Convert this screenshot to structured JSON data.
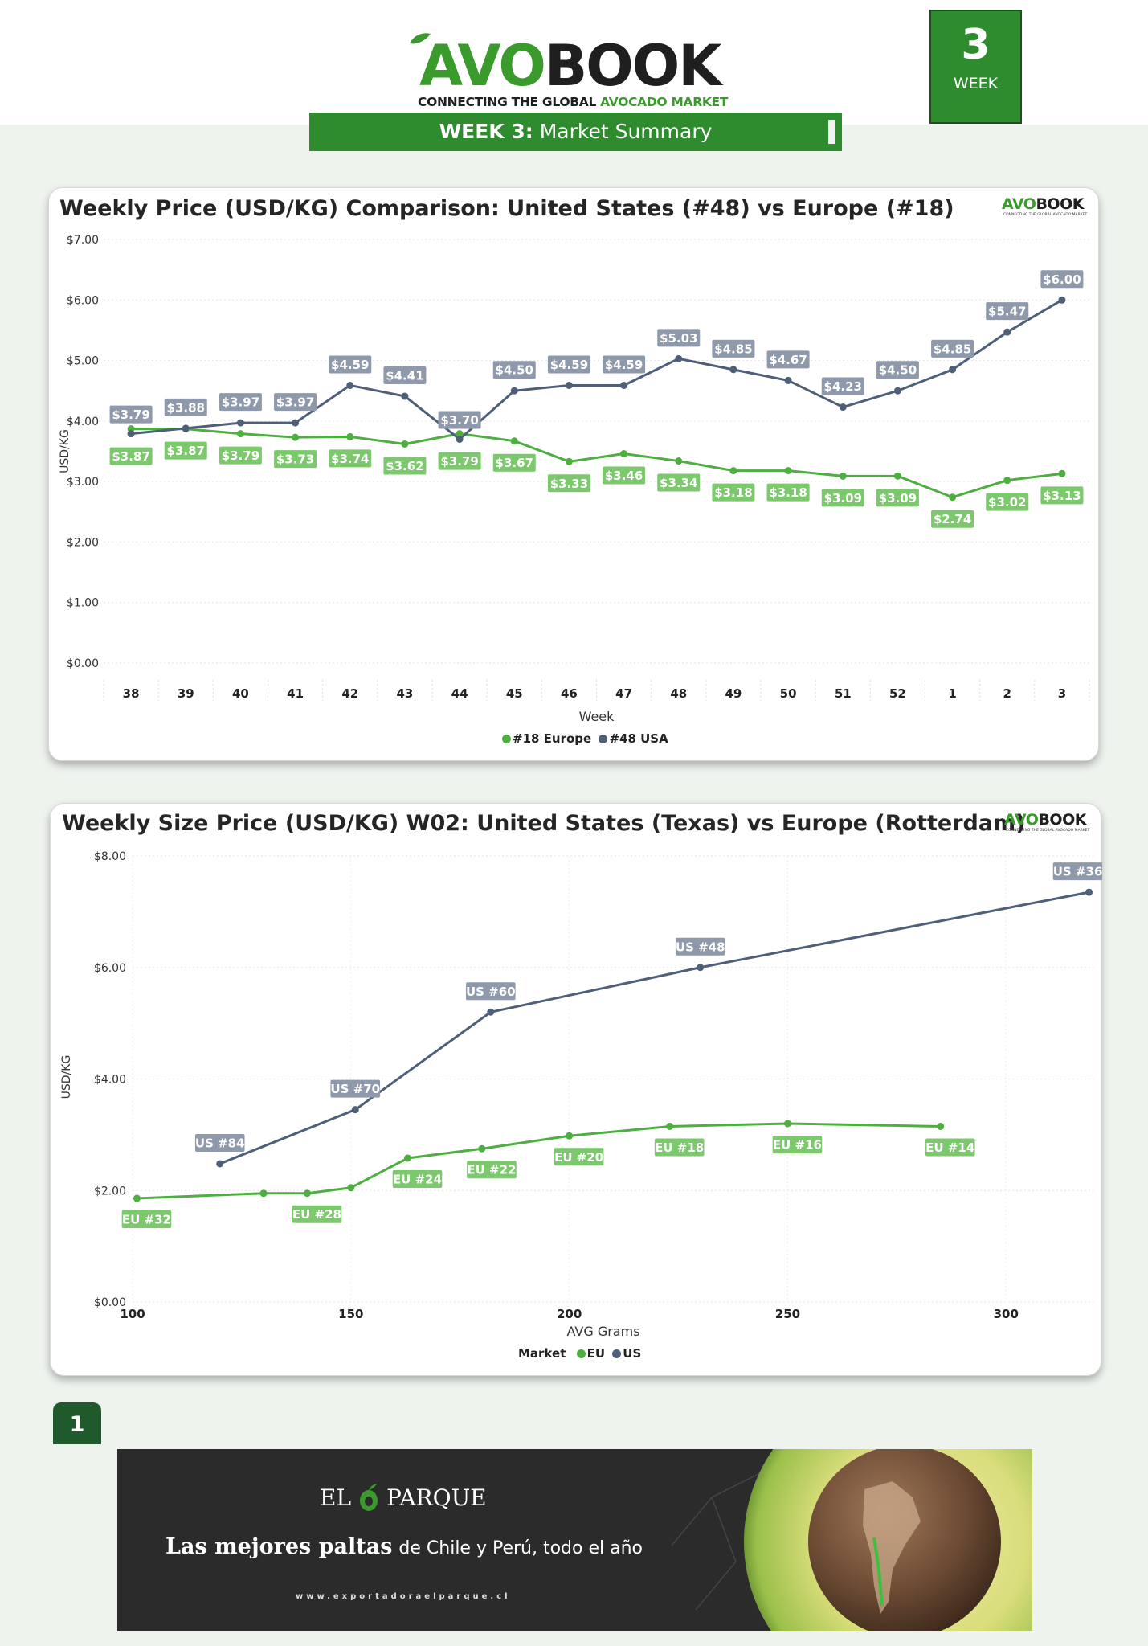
{
  "header": {
    "logo_avo": "AVO",
    "logo_book": "BOOK",
    "tagline_a": "CONNECTING THE GLOBAL ",
    "tagline_b": "AVOCADO MARKET",
    "banner_week": "WEEK 3:",
    "banner_title": " Market Summary",
    "week_number": "3",
    "week_label": "WEEK"
  },
  "brand": {
    "green": "#3a9a2c",
    "banner_green": "#2e8b2e",
    "eu_color": "#4caf3f",
    "us_color": "#4f5f78"
  },
  "chart_data": [
    {
      "type": "line",
      "title": "Weekly Price (USD/KG) Comparison: United States (#48) vs Europe (#18)",
      "xlabel": "Week",
      "ylabel": "USD/KG",
      "ylim": [
        0,
        7
      ],
      "yticks": [
        "$0.00",
        "$1.00",
        "$2.00",
        "$3.00",
        "$4.00",
        "$5.00",
        "$6.00",
        "$7.00"
      ],
      "categories": [
        "38",
        "39",
        "40",
        "41",
        "42",
        "43",
        "44",
        "45",
        "46",
        "47",
        "48",
        "49",
        "50",
        "51",
        "52",
        "1",
        "2",
        "3"
      ],
      "series": [
        {
          "name": "#18 Europe",
          "color": "#4caf3f",
          "values": [
            3.87,
            3.87,
            3.79,
            3.73,
            3.74,
            3.62,
            3.79,
            3.67,
            3.33,
            3.46,
            3.34,
            3.18,
            3.18,
            3.09,
            3.09,
            2.74,
            3.02,
            3.13
          ],
          "labels": [
            "$3.87",
            "$3.87",
            "$3.79",
            "$3.73",
            "$3.74",
            "$3.62",
            "$3.79",
            "$3.67",
            "$3.33",
            "$3.46",
            "$3.34",
            "$3.18",
            "$3.18",
            "$3.09",
            "$3.09",
            "$2.74",
            "$3.02",
            "$3.13"
          ]
        },
        {
          "name": "#48 USA",
          "color": "#4f5f78",
          "values": [
            3.79,
            3.88,
            3.97,
            3.97,
            4.59,
            4.41,
            3.7,
            4.5,
            4.59,
            4.59,
            5.03,
            4.85,
            4.67,
            4.23,
            4.5,
            4.85,
            5.47,
            6.0
          ],
          "labels": [
            "$3.79",
            "$3.88",
            "$3.97",
            "$3.97",
            "$4.59",
            "$4.41",
            "$3.70",
            "$4.50",
            "$4.59",
            "$4.59",
            "$5.03",
            "$4.85",
            "$4.67",
            "$4.23",
            "$4.50",
            "$4.85",
            "$5.47",
            "$6.00"
          ]
        }
      ],
      "legend": {
        "position": "bottom",
        "items": [
          "#18 Europe",
          "#48 USA"
        ]
      },
      "grid": true
    },
    {
      "type": "line",
      "title": "Weekly Size Price (USD/KG) W02: United States (Texas) vs Europe (Rotterdam)",
      "xlabel": "AVG Grams",
      "ylabel": "USD/KG",
      "xlim": [
        100,
        320
      ],
      "xticks": [
        "100",
        "150",
        "200",
        "250",
        "300"
      ],
      "ylim": [
        0,
        8
      ],
      "yticks": [
        "$0.00",
        "$2.00",
        "$4.00",
        "$6.00",
        "$8.00"
      ],
      "series": [
        {
          "name": "EU",
          "color": "#4caf3f",
          "points": [
            {
              "x": 101,
              "y": 1.86,
              "label": "EU #32"
            },
            {
              "x": 130,
              "y": 1.95,
              "label": ""
            },
            {
              "x": 140,
              "y": 1.95,
              "label": "EU #28"
            },
            {
              "x": 150,
              "y": 2.05,
              "label": ""
            },
            {
              "x": 163,
              "y": 2.58,
              "label": "EU #24"
            },
            {
              "x": 180,
              "y": 2.75,
              "label": "EU #22"
            },
            {
              "x": 200,
              "y": 2.98,
              "label": "EU #20"
            },
            {
              "x": 223,
              "y": 3.15,
              "label": "EU #18"
            },
            {
              "x": 250,
              "y": 3.2,
              "label": "EU #16"
            },
            {
              "x": 285,
              "y": 3.15,
              "label": "EU #14"
            }
          ]
        },
        {
          "name": "US",
          "color": "#4f5f78",
          "points": [
            {
              "x": 120,
              "y": 2.48,
              "label": "US #84"
            },
            {
              "x": 151,
              "y": 3.45,
              "label": "US #70"
            },
            {
              "x": 182,
              "y": 5.2,
              "label": "US #60"
            },
            {
              "x": 230,
              "y": 6.0,
              "label": "US #48"
            },
            {
              "x": 319,
              "y": 7.35,
              "label": "US #36"
            }
          ]
        }
      ],
      "legend": {
        "position": "bottom",
        "title": "Market",
        "items": [
          "EU",
          "US"
        ]
      },
      "grid": true
    }
  ],
  "footer": {
    "page_number": "1",
    "ad": {
      "brand_a": "EL",
      "brand_b": "PARQUE",
      "headline": "Las mejores paltas",
      "subline": "de Chile y Perú, todo el año",
      "url": "www.exportadoraelparque.cl"
    }
  }
}
